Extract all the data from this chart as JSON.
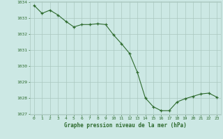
{
  "hours": [
    0,
    1,
    2,
    3,
    4,
    5,
    6,
    7,
    8,
    9,
    10,
    11,
    12,
    13,
    14,
    15,
    16,
    17,
    18,
    19,
    20,
    21,
    22,
    23
  ],
  "pressure": [
    1033.8,
    1033.3,
    1033.5,
    1033.2,
    1032.8,
    1032.45,
    1032.6,
    1032.6,
    1032.65,
    1032.6,
    1031.95,
    1031.4,
    1030.8,
    1029.6,
    1028.0,
    1027.45,
    1027.2,
    1027.2,
    1027.75,
    1027.95,
    1028.1,
    1028.25,
    1028.3,
    1028.05
  ],
  "line_color": "#2d6a2d",
  "marker_color": "#2d6a2d",
  "bg_color": "#cce8e4",
  "grid_color": "#aac8c0",
  "label_color": "#2d6a2d",
  "xlabel": "Graphe pression niveau de la mer (hPa)",
  "ylim_min": 1027,
  "ylim_max": 1034,
  "yticks": [
    1027,
    1028,
    1029,
    1030,
    1031,
    1032,
    1033,
    1034
  ],
  "xticks": [
    0,
    1,
    2,
    3,
    4,
    5,
    6,
    7,
    8,
    9,
    10,
    11,
    12,
    13,
    14,
    15,
    16,
    17,
    18,
    19,
    20,
    21,
    22,
    23
  ]
}
